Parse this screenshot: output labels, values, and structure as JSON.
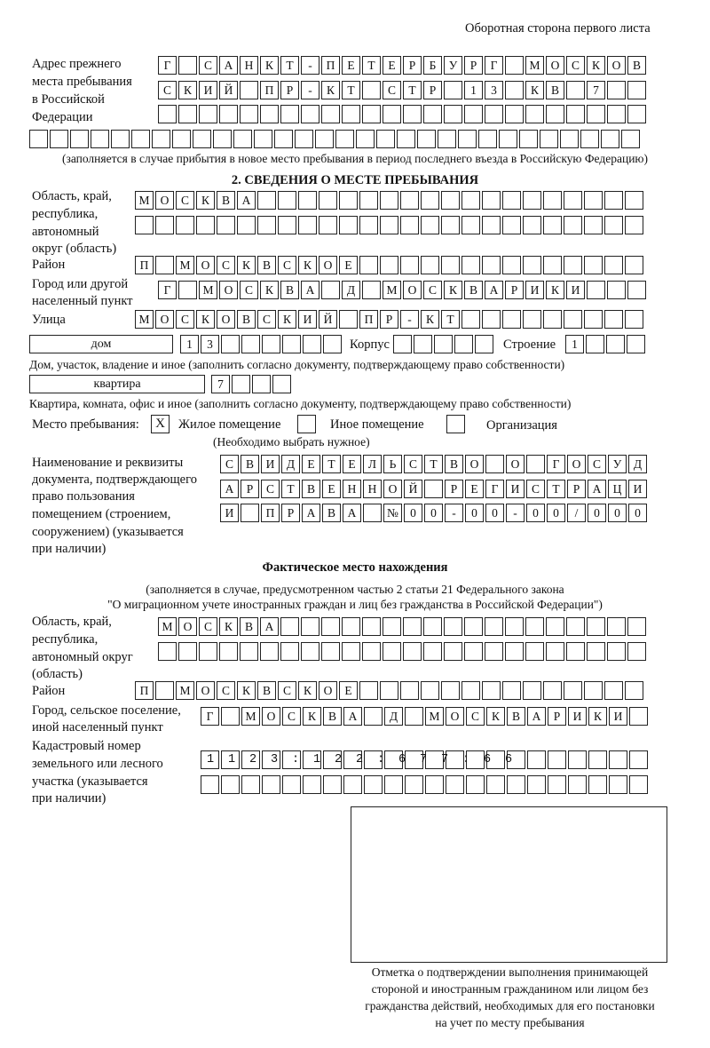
{
  "page_header": "Оборотная сторона первого листа",
  "previous_address": {
    "label_lines": [
      "Адрес прежнего",
      "места пребывания",
      "в Российской",
      "Федерации"
    ],
    "rows": [
      "Г САНКТ-ПЕТЕРБУРГ МОСКОВ",
      "СКИЙ ПР-КТ СТР 13 КВ 7  ",
      "                        ",
      "                              "
    ],
    "note": "(заполняется в случае прибытия в новое место пребывания в период последнего въезда в Российскую Федерацию)"
  },
  "section2": {
    "title": "2. СВЕДЕНИЯ О МЕСТЕ ПРЕБЫВАНИЯ",
    "region": {
      "label_lines": [
        "Область, край,",
        "республика,",
        "автономный",
        "округ (область)"
      ],
      "rows": [
        "МОСКВА                   ",
        "                         "
      ]
    },
    "district": {
      "label": "Район",
      "row": "П МОСКВСКОЕ              "
    },
    "city": {
      "label_lines": [
        "Город или другой",
        "населенный пункт"
      ],
      "row": "Г МОСКВА Д МОСКВАРИКИ   "
    },
    "street": {
      "label": "Улица",
      "row": "МОСКОВСКИЙ ПР-КТ         "
    },
    "house": {
      "type_value": "дом",
      "number_row": "13      ",
      "korpus_label": "Корпус",
      "korpus_row": "     ",
      "building_label": "Строение",
      "building_row": "1   ",
      "note": "Дом, участок, владение и иное (заполнить согласно документу, подтверждающему право собственности)"
    },
    "apartment": {
      "type_value": "квартира",
      "number_row": "7   ",
      "note": "Квартира, комната, офис и иное (заполнить согласно документу, подтверждающему право собственности)"
    },
    "stay_place": {
      "label": "Место пребывания:",
      "options": [
        {
          "label": "Жилое помещение",
          "mark": "X",
          "checked": true
        },
        {
          "label": "Иное помещение",
          "mark": "",
          "checked": false
        },
        {
          "label": "Организация",
          "mark": "",
          "checked": false
        }
      ],
      "note": "(Необходимо выбрать нужное)"
    },
    "document": {
      "label_lines": [
        "Наименование и реквизиты",
        "документа, подтверждающего",
        "право пользования",
        "помещением (строением,",
        "сооружением) (указывается",
        "при наличии)"
      ],
      "rows": [
        "СВИДЕТЕЛЬСТВО О ГОСУД",
        "АРСТВЕННОЙ РЕГИСТРАЦИ",
        "И ПРАВА №00-00-00/000"
      ]
    }
  },
  "actual_location": {
    "title": "Фактическое место нахождения",
    "note_lines": [
      "(заполняется в случае, предусмотренном частью 2 статьи 21 Федерального закона",
      "\"О миграционном учете иностранных граждан и лиц без гражданства в Российской Федерации\")"
    ],
    "region": {
      "label_lines": [
        "Область, край,",
        "республика,",
        "автономный округ",
        "(область)"
      ],
      "rows": [
        "МОСКВА                  ",
        "                        "
      ]
    },
    "district": {
      "label": "Район",
      "row": "П МОСКВСКОЕ              "
    },
    "city": {
      "label_lines": [
        "Город, сельское поселение,",
        "иной населенный пункт"
      ],
      "row": "Г МОСКВА Д МОСКВАРИКИ "
    },
    "cadastral": {
      "label_lines": [
        "Кадастровый номер",
        "земельного или лесного",
        "участка (указывается",
        "при наличии)"
      ],
      "rows": [
        "1123:122:677:66       ",
        "                      "
      ]
    }
  },
  "confirmation": {
    "caption_lines": [
      "Отметка о подтверждении выполнения принимающей",
      "стороной и иностранным гражданином или лицом без",
      "гражданства действий, необходимых для его постановки",
      "на учет по месту пребывания"
    ]
  }
}
